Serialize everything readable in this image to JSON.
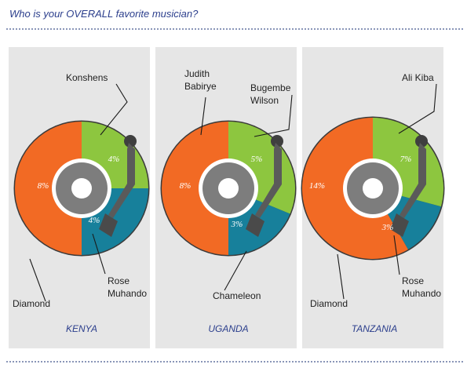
{
  "question": "Who is your OVERALL favorite musician?",
  "colors": {
    "orange": "#f26a24",
    "green": "#8dc63f",
    "teal": "#17809b",
    "disc_gray": "#7d7d7d",
    "arm_gray": "#5a5a5a",
    "panel": "#e6e6e6",
    "country_text": "#2b3e8c"
  },
  "chart_data": [
    {
      "type": "pie",
      "country": "KENYA",
      "slices": [
        {
          "label": "Konshens",
          "label_lines": [
            "Konshens"
          ],
          "value": 4,
          "display": "4%",
          "color": "green"
        },
        {
          "label": "Rose Muhando",
          "label_lines": [
            "Rose",
            "Muhando"
          ],
          "value": 4,
          "display": "4%",
          "color": "teal"
        },
        {
          "label": "Diamond",
          "label_lines": [
            "Diamond"
          ],
          "value": 8,
          "display": "8%",
          "color": "orange"
        }
      ]
    },
    {
      "type": "pie",
      "country": "UGANDA",
      "slices": [
        {
          "label": "Bugembe Wilson",
          "label_lines": [
            "Bugembe",
            "Wilson"
          ],
          "value": 5,
          "display": "5%",
          "color": "green"
        },
        {
          "label": "Chameleon",
          "label_lines": [
            "Chameleon"
          ],
          "value": 3,
          "display": "3%",
          "color": "teal"
        },
        {
          "label": "Judith Babirye",
          "label_lines": [
            "Judith",
            "Babirye"
          ],
          "value": 8,
          "display": "8%",
          "color": "orange"
        }
      ]
    },
    {
      "type": "pie",
      "country": "TANZANIA",
      "slices": [
        {
          "label": "Ali Kiba",
          "label_lines": [
            "Ali Kiba"
          ],
          "value": 7,
          "display": "7%",
          "color": "green"
        },
        {
          "label": "Rose Muhando",
          "label_lines": [
            "Rose",
            "Muhando"
          ],
          "value": 3,
          "display": "3%",
          "color": "teal"
        },
        {
          "label": "Diamond",
          "label_lines": [
            "Diamond"
          ],
          "value": 14,
          "display": "14%",
          "color": "orange"
        }
      ]
    }
  ]
}
